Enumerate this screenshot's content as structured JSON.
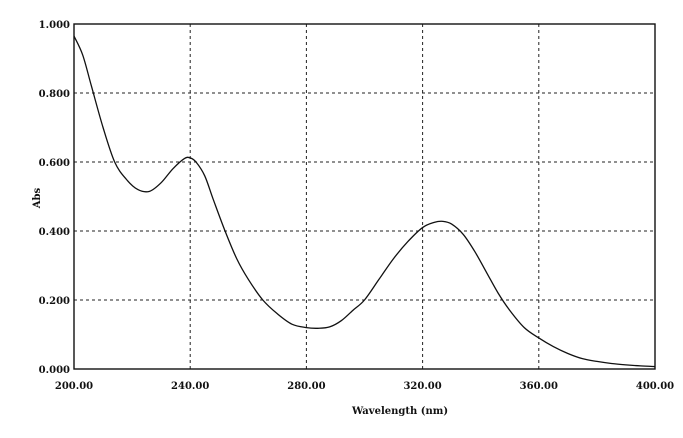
{
  "chart_data": {
    "type": "line",
    "xlabel": "Wavelength (nm)",
    "ylabel": "Abs",
    "xlim": [
      200,
      400
    ],
    "ylim": [
      0,
      1
    ],
    "x_ticks": [
      200,
      240,
      280,
      320,
      360,
      400
    ],
    "x_tick_labels": [
      "200.00",
      "240.00",
      "280.00",
      "320.00",
      "360.00",
      "400.00"
    ],
    "y_ticks": [
      0,
      0.2,
      0.4,
      0.6,
      0.8,
      1.0
    ],
    "y_tick_labels": [
      "0.000",
      "0.200",
      "0.400",
      "0.600",
      "0.800",
      "1.000"
    ],
    "grid": true,
    "series": [
      {
        "x": [
          200,
          203,
          206,
          210,
          214,
          218,
          222,
          226,
          230,
          234,
          238,
          240,
          242,
          245,
          248,
          252,
          256,
          260,
          265,
          270,
          275,
          280,
          284,
          288,
          292,
          296,
          300,
          305,
          310,
          315,
          320,
          324,
          327,
          330,
          334,
          338,
          342,
          346,
          350,
          355,
          360,
          365,
          370,
          375,
          380,
          385,
          390,
          395,
          400
        ],
        "y": [
          0.965,
          0.91,
          0.82,
          0.7,
          0.6,
          0.55,
          0.52,
          0.515,
          0.54,
          0.58,
          0.61,
          0.612,
          0.6,
          0.56,
          0.49,
          0.4,
          0.32,
          0.26,
          0.2,
          0.16,
          0.13,
          0.12,
          0.118,
          0.122,
          0.14,
          0.17,
          0.2,
          0.26,
          0.32,
          0.37,
          0.41,
          0.425,
          0.428,
          0.42,
          0.39,
          0.34,
          0.28,
          0.22,
          0.17,
          0.12,
          0.09,
          0.065,
          0.045,
          0.03,
          0.022,
          0.016,
          0.012,
          0.009,
          0.007
        ]
      }
    ]
  }
}
